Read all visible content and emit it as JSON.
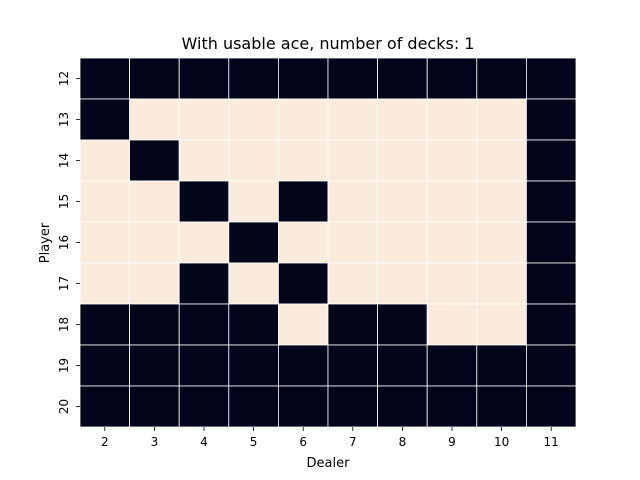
{
  "chart_data": {
    "type": "heatmap",
    "title": "With usable ace, number of decks: 1",
    "xlabel": "Dealer",
    "ylabel": "Player",
    "x_categories": [
      "2",
      "3",
      "4",
      "5",
      "6",
      "7",
      "8",
      "9",
      "10",
      "11"
    ],
    "y_categories": [
      "12",
      "13",
      "14",
      "15",
      "16",
      "17",
      "18",
      "19",
      "20"
    ],
    "values": [
      [
        0,
        0,
        0,
        0,
        0,
        0,
        0,
        0,
        0,
        0
      ],
      [
        0,
        1,
        1,
        1,
        1,
        1,
        1,
        1,
        1,
        0
      ],
      [
        1,
        0,
        1,
        1,
        1,
        1,
        1,
        1,
        1,
        0
      ],
      [
        1,
        1,
        0,
        1,
        0,
        1,
        1,
        1,
        1,
        0
      ],
      [
        1,
        1,
        1,
        0,
        1,
        1,
        1,
        1,
        1,
        0
      ],
      [
        1,
        1,
        0,
        1,
        0,
        1,
        1,
        1,
        1,
        0
      ],
      [
        0,
        0,
        0,
        0,
        1,
        0,
        0,
        1,
        1,
        0
      ],
      [
        0,
        0,
        0,
        0,
        0,
        0,
        0,
        0,
        0,
        0
      ],
      [
        0,
        0,
        0,
        0,
        0,
        0,
        0,
        0,
        0,
        0
      ]
    ],
    "colorbar": false,
    "grid": false,
    "colors": {
      "0": "#03051a",
      "1": "#faebdd",
      "cell_border": "#ffffff"
    }
  }
}
